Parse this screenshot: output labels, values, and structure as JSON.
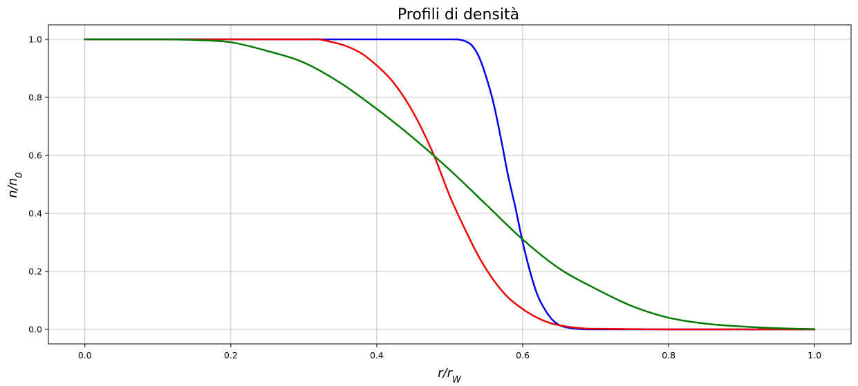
{
  "chart_data": {
    "type": "line",
    "title": "Profili di densità",
    "xlabel": {
      "base": "r/r",
      "sub": "W"
    },
    "ylabel": {
      "base": "n/n",
      "sub": "0"
    },
    "xlim": [
      -0.05,
      1.05
    ],
    "ylim": [
      -0.05,
      1.05
    ],
    "xticks": [
      0.0,
      0.2,
      0.4,
      0.6,
      0.8,
      1.0
    ],
    "xtick_labels": [
      "0.0",
      "0.2",
      "0.4",
      "0.6",
      "0.8",
      "1.0"
    ],
    "yticks": [
      0.0,
      0.2,
      0.4,
      0.6,
      0.8,
      1.0
    ],
    "ytick_labels": [
      "0.0",
      "0.2",
      "0.4",
      "0.6",
      "0.8",
      "1.0"
    ],
    "grid": true,
    "series": [
      {
        "color": "#0000ee",
        "x": [
          0.0,
          0.1,
          0.2,
          0.3,
          0.4,
          0.5,
          0.51,
          0.52,
          0.53,
          0.54,
          0.55,
          0.56,
          0.57,
          0.58,
          0.59,
          0.6,
          0.61,
          0.62,
          0.63,
          0.64,
          0.65,
          0.66,
          0.67,
          0.68,
          0.7,
          0.8,
          0.9,
          1.0
        ],
        "y": [
          1.0,
          1.0,
          1.0,
          1.0,
          1.0,
          1.0,
          1.0,
          0.995,
          0.98,
          0.94,
          0.87,
          0.78,
          0.66,
          0.53,
          0.42,
          0.3,
          0.2,
          0.12,
          0.07,
          0.035,
          0.015,
          0.007,
          0.003,
          0.001,
          0.0,
          0.0,
          0.0,
          0.0
        ]
      },
      {
        "color": "#ee0000",
        "x": [
          0.0,
          0.1,
          0.2,
          0.3,
          0.32,
          0.34,
          0.36,
          0.38,
          0.4,
          0.42,
          0.44,
          0.46,
          0.48,
          0.5,
          0.52,
          0.54,
          0.56,
          0.58,
          0.6,
          0.62,
          0.64,
          0.66,
          0.68,
          0.7,
          0.8,
          0.9,
          1.0
        ],
        "y": [
          1.0,
          1.0,
          1.0,
          1.0,
          1.0,
          0.99,
          0.975,
          0.95,
          0.91,
          0.86,
          0.79,
          0.7,
          0.59,
          0.46,
          0.35,
          0.25,
          0.17,
          0.11,
          0.07,
          0.04,
          0.02,
          0.01,
          0.004,
          0.002,
          0.0,
          0.0,
          0.0
        ]
      },
      {
        "color": "#007a00",
        "x": [
          0.0,
          0.05,
          0.1,
          0.15,
          0.2,
          0.25,
          0.3,
          0.35,
          0.4,
          0.45,
          0.5,
          0.55,
          0.6,
          0.65,
          0.7,
          0.75,
          0.8,
          0.85,
          0.9,
          0.95,
          1.0
        ],
        "y": [
          1.0,
          1.0,
          1.0,
          0.998,
          0.99,
          0.96,
          0.92,
          0.85,
          0.76,
          0.66,
          0.55,
          0.43,
          0.31,
          0.21,
          0.14,
          0.08,
          0.04,
          0.02,
          0.01,
          0.004,
          0.001
        ]
      }
    ]
  }
}
